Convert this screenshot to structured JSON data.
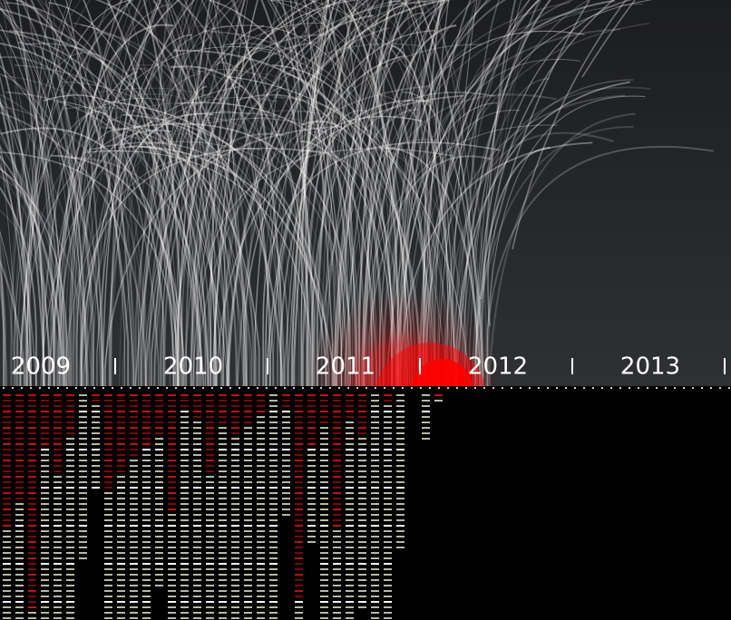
{
  "timeline": {
    "years": [
      "2009",
      "2010",
      "2011",
      "2012",
      "2013"
    ]
  },
  "columns": [
    {
      "count": 42,
      "highlighted": 25
    },
    {
      "count": 42,
      "highlighted": 20
    },
    {
      "count": 42,
      "highlighted": 40
    },
    {
      "count": 42,
      "highlighted": 10
    },
    {
      "count": 42,
      "highlighted": 15
    },
    {
      "count": 42,
      "highlighted": 8
    },
    {
      "count": 31,
      "highlighted": 0
    },
    {
      "count": 18,
      "highlighted": 2
    },
    {
      "count": 42,
      "highlighted": 18
    },
    {
      "count": 42,
      "highlighted": 15
    },
    {
      "count": 42,
      "highlighted": 12
    },
    {
      "count": 42,
      "highlighted": 10
    },
    {
      "count": 36,
      "highlighted": 8
    },
    {
      "count": 42,
      "highlighted": 22
    },
    {
      "count": 42,
      "highlighted": 3
    },
    {
      "count": 42,
      "highlighted": 5
    },
    {
      "count": 42,
      "highlighted": 15
    },
    {
      "count": 42,
      "highlighted": 6
    },
    {
      "count": 42,
      "highlighted": 8
    },
    {
      "count": 42,
      "highlighted": 6
    },
    {
      "count": 42,
      "highlighted": 4
    },
    {
      "count": 42,
      "highlighted": 0
    },
    {
      "count": 23,
      "highlighted": 3
    },
    {
      "count": 42,
      "highlighted": 38
    },
    {
      "count": 28,
      "highlighted": 10
    },
    {
      "count": 42,
      "highlighted": 6
    },
    {
      "count": 42,
      "highlighted": 25
    },
    {
      "count": 42,
      "highlighted": 5
    },
    {
      "count": 40,
      "highlighted": 8
    },
    {
      "count": 42,
      "highlighted": 0
    },
    {
      "count": 42,
      "highlighted": 2
    },
    {
      "count": 29,
      "highlighted": 0
    },
    {
      "count": 0,
      "highlighted": 0
    },
    {
      "count": 9,
      "highlighted": 0
    },
    {
      "count": 2,
      "highlighted": 1
    }
  ]
}
